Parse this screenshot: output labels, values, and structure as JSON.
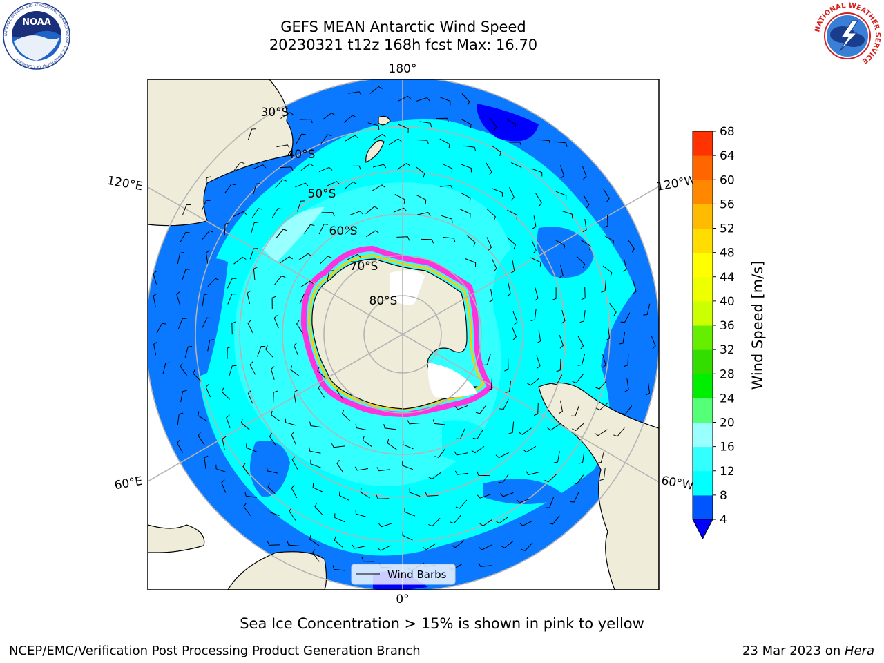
{
  "header": {
    "title_line1": "GEFS MEAN Antarctic Wind Speed",
    "title_line2": "20230321 t12z 168h fcst   Max: 16.70"
  },
  "logos": {
    "left": {
      "icon": "noaa-logo-icon",
      "text": "NOAA",
      "ring_text": "NATIONAL OCEANIC AND ATMOSPHERIC ADMINISTRATION · U.S. DEPARTMENT OF COMMERCE"
    },
    "right": {
      "icon": "nws-logo-icon",
      "ring_text": "NATIONAL WEATHER SERVICE"
    }
  },
  "map": {
    "projection": "south polar stereographic",
    "longitude_labels": {
      "top": "180°",
      "left_upper": "120°E",
      "right_upper": "120°W",
      "left_lower": "60°E",
      "right_lower": "60°W",
      "bottom": "0°"
    },
    "latitude_labels": [
      "30°S",
      "40°S",
      "50°S",
      "60°S",
      "70°S",
      "80°S"
    ],
    "legend": {
      "label": "Wind Barbs"
    },
    "colors": {
      "land": "#efedd9",
      "ice_edge_pink": "#ff33dd",
      "ice_edge_yellow": "#ffcc00",
      "ice_sheet": "#ffffff",
      "grid": "#b4b4b4"
    }
  },
  "colorbar": {
    "title": "Wind Speed [m/s]",
    "ticks": [
      "4",
      "8",
      "12",
      "16",
      "20",
      "24",
      "28",
      "32",
      "36",
      "40",
      "44",
      "48",
      "52",
      "56",
      "60",
      "64",
      "68"
    ],
    "colors": [
      "#0055ff",
      "#00ffff",
      "#33ffff",
      "#99ffff",
      "#55ff77",
      "#00ee00",
      "#33dd00",
      "#66ee00",
      "#ccff00",
      "#eeff00",
      "#ffff00",
      "#ffdd00",
      "#ffbb00",
      "#ff8800",
      "#ff6600",
      "#ff3300",
      "#ff0000"
    ],
    "under_color": "#0000ff"
  },
  "footer": {
    "caption": "Sea Ice Concentration > 15% is shown in pink to yellow",
    "credit_left": "NCEP/EMC/Verification Post Processing Product Generation Branch",
    "credit_right_prefix": "23 Mar 2023 on ",
    "credit_right_host": "Hera"
  }
}
